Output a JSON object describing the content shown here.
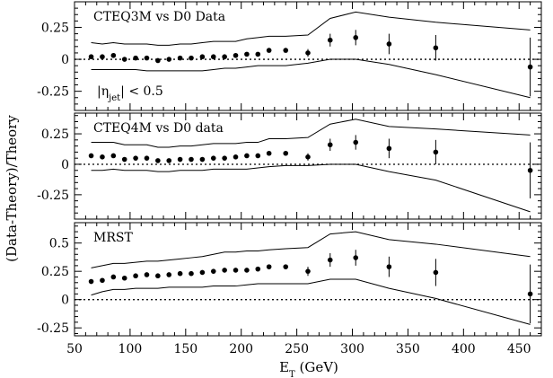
{
  "chart_data": {
    "type": "scatter",
    "ylabel": "(Data-Theory)/Theory",
    "xlabel": {
      "main": "E",
      "sub": "T",
      "rest": " (GeV)"
    },
    "xlim": [
      50,
      470
    ],
    "xticks": [
      50,
      100,
      150,
      200,
      250,
      300,
      350,
      400,
      450
    ],
    "x": [
      65,
      75,
      85,
      95,
      105,
      115,
      125,
      135,
      145,
      155,
      165,
      175,
      185,
      195,
      205,
      215,
      225,
      240,
      260,
      280,
      303,
      333,
      375,
      460
    ],
    "panels": [
      {
        "title": "CTEQ3M vs  D0 Data",
        "annotation": {
          "main": "|η",
          "sub": "jet",
          "rest": "| < 0.5"
        },
        "ylim": [
          -0.4,
          0.45
        ],
        "yticks": [
          -0.25,
          0,
          0.25
        ],
        "ytick_labels": [
          "-0.25",
          "0",
          "0.25"
        ],
        "y": [
          0.02,
          0.02,
          0.03,
          0.0,
          0.01,
          0.01,
          -0.01,
          0.0,
          0.01,
          0.01,
          0.02,
          0.02,
          0.02,
          0.03,
          0.04,
          0.04,
          0.07,
          0.07,
          0.05,
          0.15,
          0.17,
          0.12,
          0.09,
          -0.06
        ],
        "yerr": [
          0.01,
          0.01,
          0.01,
          0.01,
          0.01,
          0.01,
          0.01,
          0.01,
          0.01,
          0.01,
          0.01,
          0.01,
          0.01,
          0.01,
          0.01,
          0.01,
          0.01,
          0.02,
          0.03,
          0.05,
          0.06,
          0.08,
          0.1,
          0.23
        ],
        "band_upper": [
          0.13,
          0.12,
          0.13,
          0.12,
          0.12,
          0.12,
          0.11,
          0.11,
          0.12,
          0.12,
          0.13,
          0.14,
          0.14,
          0.14,
          0.16,
          0.17,
          0.18,
          0.18,
          0.19,
          0.32,
          0.37,
          0.33,
          0.29,
          0.23
        ],
        "band_lower": [
          -0.08,
          -0.08,
          -0.08,
          -0.08,
          -0.08,
          -0.09,
          -0.09,
          -0.09,
          -0.09,
          -0.09,
          -0.09,
          -0.08,
          -0.07,
          -0.07,
          -0.06,
          -0.05,
          -0.05,
          -0.05,
          -0.03,
          0.0,
          0.0,
          -0.04,
          -0.12,
          -0.3
        ]
      },
      {
        "title": "CTEQ4M vs  D0 data",
        "ylim": [
          -0.45,
          0.42
        ],
        "yticks": [
          -0.25,
          0,
          0.25
        ],
        "ytick_labels": [
          "-0.25",
          "0",
          "0.25"
        ],
        "y": [
          0.07,
          0.06,
          0.07,
          0.04,
          0.05,
          0.05,
          0.03,
          0.03,
          0.04,
          0.04,
          0.04,
          0.05,
          0.05,
          0.06,
          0.07,
          0.07,
          0.09,
          0.09,
          0.06,
          0.16,
          0.18,
          0.13,
          0.1,
          -0.05
        ],
        "yerr": [
          0.01,
          0.01,
          0.01,
          0.01,
          0.01,
          0.01,
          0.01,
          0.01,
          0.01,
          0.01,
          0.01,
          0.01,
          0.01,
          0.01,
          0.01,
          0.01,
          0.01,
          0.02,
          0.03,
          0.05,
          0.06,
          0.08,
          0.1,
          0.23
        ],
        "band_upper": [
          0.18,
          0.18,
          0.18,
          0.16,
          0.16,
          0.16,
          0.14,
          0.14,
          0.15,
          0.15,
          0.16,
          0.17,
          0.17,
          0.17,
          0.18,
          0.18,
          0.21,
          0.21,
          0.22,
          0.33,
          0.37,
          0.31,
          0.29,
          0.24
        ],
        "band_lower": [
          -0.05,
          -0.05,
          -0.04,
          -0.05,
          -0.05,
          -0.05,
          -0.06,
          -0.06,
          -0.05,
          -0.05,
          -0.05,
          -0.04,
          -0.04,
          -0.04,
          -0.04,
          -0.03,
          -0.02,
          -0.01,
          -0.01,
          0.0,
          0.0,
          -0.06,
          -0.13,
          -0.39
        ]
      },
      {
        "title": "MRST",
        "ylim": [
          -0.32,
          0.68
        ],
        "yticks": [
          -0.25,
          0,
          0.25,
          0.5
        ],
        "ytick_labels": [
          "-0.25",
          "0",
          "0.25",
          "0.5"
        ],
        "y": [
          0.16,
          0.17,
          0.2,
          0.19,
          0.21,
          0.22,
          0.21,
          0.22,
          0.23,
          0.23,
          0.24,
          0.25,
          0.26,
          0.26,
          0.26,
          0.27,
          0.29,
          0.29,
          0.25,
          0.35,
          0.37,
          0.29,
          0.24,
          0.05
        ],
        "yerr": [
          0.01,
          0.01,
          0.01,
          0.01,
          0.01,
          0.01,
          0.01,
          0.01,
          0.01,
          0.01,
          0.01,
          0.01,
          0.01,
          0.01,
          0.01,
          0.01,
          0.01,
          0.02,
          0.04,
          0.06,
          0.07,
          0.09,
          0.12,
          0.26
        ],
        "band_upper": [
          0.28,
          0.3,
          0.32,
          0.32,
          0.33,
          0.34,
          0.34,
          0.35,
          0.36,
          0.37,
          0.38,
          0.4,
          0.42,
          0.42,
          0.43,
          0.43,
          0.44,
          0.45,
          0.46,
          0.58,
          0.6,
          0.53,
          0.49,
          0.38
        ],
        "band_lower": [
          0.04,
          0.07,
          0.09,
          0.09,
          0.1,
          0.1,
          0.1,
          0.11,
          0.11,
          0.11,
          0.11,
          0.12,
          0.12,
          0.12,
          0.13,
          0.14,
          0.14,
          0.14,
          0.14,
          0.18,
          0.18,
          0.1,
          0.01,
          -0.22
        ]
      }
    ]
  }
}
